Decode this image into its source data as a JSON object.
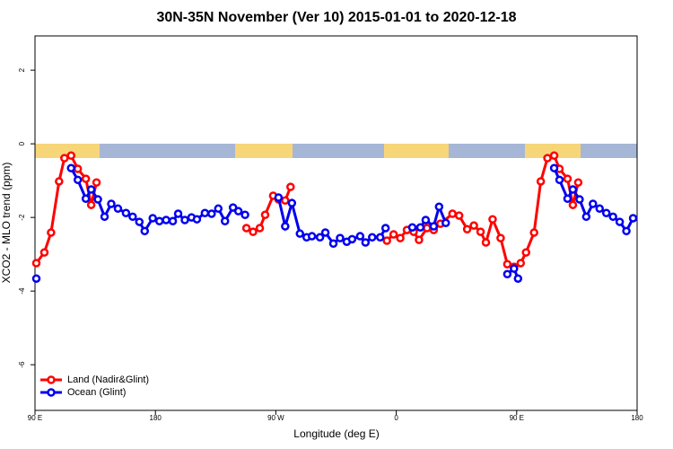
{
  "chart_data": {
    "type": "line",
    "title": "30N-35N November (Ver 10)   2015-01-01 to 2020-12-18",
    "x_label": "Longitude (deg E)",
    "y_label": "XCO2 - MLO trend (ppm)",
    "xlim": [
      90,
      540
    ],
    "ylim": [
      -7.24,
      2.93
    ],
    "xticks": [
      {
        "value": 90,
        "label": "90 E"
      },
      180,
      {
        "value": 270,
        "label": "90 W"
      },
      {
        "value": 360,
        "label": "0"
      },
      {
        "value": 450,
        "label": "90 E"
      },
      {
        "value": 540,
        "label": "180"
      }
    ],
    "yticks": [
      2,
      0,
      -2,
      -4,
      -6
    ],
    "legend": "bottom-left",
    "series": [
      {
        "name": "Land (Nadir&Glint)",
        "color": "#ff0000",
        "x": [
          91,
          97,
          102,
          108,
          112,
          117,
          122,
          128,
          132,
          136,
          200,
          248,
          253,
          258,
          262,
          268,
          272,
          277,
          281,
          350,
          353,
          358,
          363,
          368,
          373,
          377,
          383,
          388,
          393,
          402,
          407,
          413,
          418,
          423,
          427,
          432,
          438,
          443,
          448,
          453,
          457,
          463,
          468,
          473,
          478,
          482,
          488,
          492,
          496
        ],
        "values": [
          -3.24,
          -2.95,
          -2.41,
          -1.02,
          -0.39,
          -0.32,
          -0.68,
          -0.95,
          -1.66,
          -1.05,
          null,
          -2.29,
          -2.39,
          -2.29,
          -1.93,
          -1.41,
          -1.51,
          -1.54,
          -1.17,
          null,
          -2.63,
          -2.46,
          -2.56,
          -2.34,
          -2.39,
          -2.61,
          -2.29,
          -2.34,
          -2.17,
          -1.9,
          -1.95,
          -2.32,
          -2.22,
          -2.39,
          -2.68,
          -2.05,
          -2.56,
          -3.27,
          -3.34,
          -3.24,
          -2.95,
          -2.41,
          -1.02,
          -0.39,
          -0.32,
          -0.68,
          -0.95,
          -1.66,
          -1.05
        ]
      },
      {
        "name": "Ocean (Glint)",
        "color": "#0000ee",
        "x": [
          91,
          104,
          117,
          122,
          128,
          132,
          137,
          142,
          147,
          152,
          158,
          163,
          168,
          172,
          178,
          183,
          188,
          193,
          197,
          202,
          207,
          211,
          217,
          222,
          227,
          232,
          238,
          242,
          247,
          258,
          272,
          277,
          282,
          288,
          293,
          297,
          303,
          307,
          313,
          318,
          323,
          327,
          333,
          337,
          342,
          348,
          352,
          355,
          372,
          378,
          382,
          388,
          392,
          397,
          420,
          443,
          448,
          451,
          465,
          478,
          482,
          488,
          492,
          497,
          502,
          507,
          512,
          517,
          522,
          527,
          532,
          537
        ],
        "values": [
          -3.66,
          null,
          -0.66,
          -0.98,
          -1.49,
          -1.24,
          -1.51,
          -1.98,
          -1.63,
          -1.76,
          -1.88,
          -1.98,
          -2.12,
          -2.37,
          -2.02,
          -2.1,
          -2.07,
          -2.1,
          -1.9,
          -2.07,
          -2.0,
          -2.05,
          -1.88,
          -1.9,
          -1.76,
          -2.1,
          -1.73,
          -1.83,
          -1.93,
          null,
          -1.46,
          -2.24,
          -1.61,
          -2.44,
          -2.54,
          -2.51,
          -2.54,
          -2.41,
          -2.71,
          -2.56,
          -2.66,
          -2.59,
          -2.51,
          -2.68,
          -2.54,
          -2.54,
          -2.29,
          null,
          -2.27,
          -2.27,
          -2.07,
          -2.24,
          -1.71,
          -2.15,
          null,
          -3.54,
          -3.39,
          -3.66,
          null,
          -0.66,
          -0.98,
          -1.49,
          -1.24,
          -1.51,
          -1.98,
          -1.63,
          -1.76,
          -1.88,
          -1.98,
          -2.12,
          -2.37,
          -2.02
        ]
      }
    ]
  }
}
